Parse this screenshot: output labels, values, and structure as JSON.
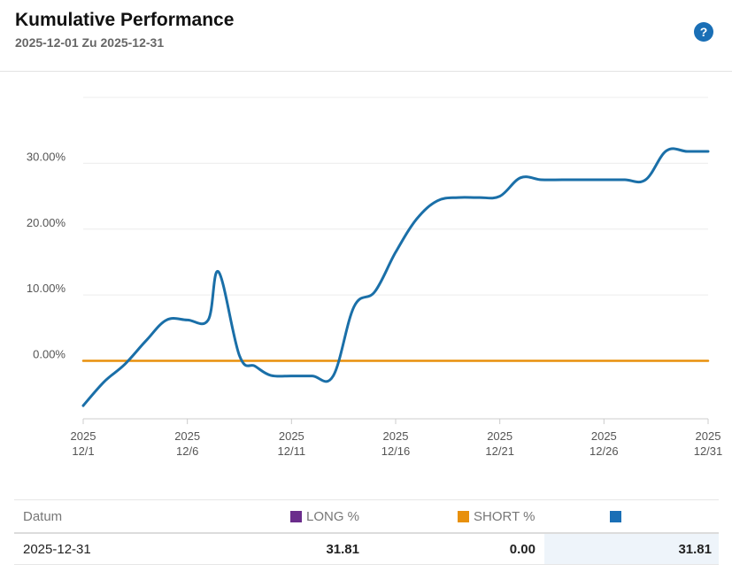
{
  "header": {
    "title": "Kumulative Performance",
    "subtitle": "2025-12-01 Zu 2025-12-31",
    "help_label": "?"
  },
  "chart_data": {
    "type": "line",
    "x_start": "2025-12-01",
    "x_end": "2025-12-31",
    "x_ticks": [
      {
        "top": "2025",
        "bottom": "12/1"
      },
      {
        "top": "2025",
        "bottom": "12/6"
      },
      {
        "top": "2025",
        "bottom": "12/11"
      },
      {
        "top": "2025",
        "bottom": "12/16"
      },
      {
        "top": "2025",
        "bottom": "12/21"
      },
      {
        "top": "2025",
        "bottom": "12/26"
      },
      {
        "top": "2025",
        "bottom": "12/31"
      }
    ],
    "y_ticks": [
      "0.00%",
      "10.00%",
      "20.00%",
      "30.00%"
    ],
    "y_tick_values": [
      0,
      10,
      20,
      30
    ],
    "ylim": [
      -8.8,
      40
    ],
    "grid": "horizontal",
    "series": [
      {
        "color": "#1a6fa8",
        "points": [
          [
            "2025-12-01",
            -6.8
          ],
          [
            "2025-12-02",
            -3.2
          ],
          [
            "2025-12-03",
            -0.5
          ],
          [
            "2025-12-04",
            3.0
          ],
          [
            "2025-12-05",
            6.2
          ],
          [
            "2025-12-06",
            6.2
          ],
          [
            "2025-12-07",
            6.2
          ],
          [
            "2025-12-07T12:00",
            13.5
          ],
          [
            "2025-12-08T12:00",
            0.8
          ],
          [
            "2025-12-09T06:00",
            -0.8
          ],
          [
            "2025-12-10",
            -2.2
          ],
          [
            "2025-12-11",
            -2.3
          ],
          [
            "2025-12-12",
            -2.3
          ],
          [
            "2025-12-13",
            -2.3
          ],
          [
            "2025-12-14",
            8.2
          ],
          [
            "2025-12-15",
            10.5
          ],
          [
            "2025-12-16",
            16.5
          ],
          [
            "2025-12-17",
            21.5
          ],
          [
            "2025-12-18",
            24.3
          ],
          [
            "2025-12-19",
            24.8
          ],
          [
            "2025-12-20",
            24.8
          ],
          [
            "2025-12-21",
            25.0
          ],
          [
            "2025-12-22",
            27.8
          ],
          [
            "2025-12-23",
            27.5
          ],
          [
            "2025-12-24",
            27.5
          ],
          [
            "2025-12-25",
            27.5
          ],
          [
            "2025-12-26",
            27.5
          ],
          [
            "2025-12-27",
            27.5
          ],
          [
            "2025-12-28",
            27.5
          ],
          [
            "2025-12-29",
            31.9
          ],
          [
            "2025-12-30",
            31.8
          ],
          [
            "2025-12-31",
            31.8
          ]
        ]
      },
      {
        "color": "#e8900c",
        "points": [
          [
            "2025-12-01",
            0.0
          ],
          [
            "2025-12-31",
            0.0
          ]
        ]
      }
    ]
  },
  "table": {
    "headers": [
      "Datum",
      "LONG %",
      "SHORT %",
      ""
    ],
    "header_colors": [
      "",
      "#6b2d8c",
      "#e8900c",
      "#1a6fb6"
    ],
    "rows": [
      {
        "date": "2025-12-31",
        "long": "31.81",
        "short": "0.00",
        "total": "31.81"
      }
    ]
  }
}
